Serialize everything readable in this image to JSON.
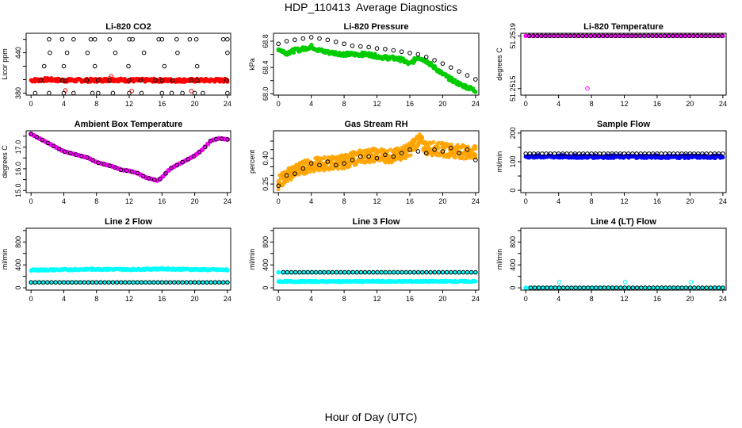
{
  "title": "HDP_110413  Average Diagnostics",
  "xlabel": "Hour of Day (UTC)",
  "chart_data": [
    {
      "type": "scatter",
      "title": "Li-820 CO2",
      "ylabel": "Licor ppm",
      "xlim": [
        -0.6,
        24.4
      ],
      "ylim": [
        377,
        469
      ],
      "xticks": [
        "0",
        "4",
        "8",
        "12",
        "16",
        "20",
        "24"
      ],
      "yticks": [
        "380",
        "400",
        "420",
        "440",
        "460"
      ],
      "ytick_labels": [
        "380",
        "",
        "",
        "440",
        ""
      ],
      "series": [
        {
          "color": "#ff0000",
          "style": "band",
          "x": [
            0,
            2,
            4,
            6,
            8,
            10,
            12,
            14,
            16,
            18,
            20,
            22,
            24
          ],
          "y": [
            399,
            400,
            399,
            399,
            399,
            400,
            399,
            399,
            399,
            399,
            399,
            399,
            399
          ],
          "spread": 2.5
        },
        {
          "color": "#ff0000",
          "style": "open",
          "x": [
            4.2,
            9.8,
            9.6,
            12.3,
            19.6
          ],
          "y": [
            384,
            405,
            402,
            383,
            383
          ]
        },
        {
          "color": "#000000",
          "style": "open",
          "x": [
            0.5,
            2.2,
            4,
            5.2,
            7.5,
            8.2,
            10,
            12,
            13.5,
            16,
            17.2,
            18.5,
            20,
            21,
            24
          ],
          "y": [
            380,
            380,
            380,
            380,
            380,
            380,
            380,
            380,
            380,
            380,
            380,
            380,
            380,
            380,
            380
          ]
        },
        {
          "color": "#000000",
          "style": "open",
          "x": [
            1.2,
            3.8,
            4.2,
            6.8,
            8.2,
            9.6,
            12,
            13.4,
            15.2,
            16,
            17.3,
            19.6,
            20.3,
            23.9
          ],
          "y": [
            399,
            399,
            399,
            399,
            399,
            399,
            399,
            399,
            399,
            399,
            399,
            399,
            399,
            399
          ]
        },
        {
          "color": "#000000",
          "style": "open",
          "x": [
            1.6,
            2.3,
            4,
            4.4,
            6.9,
            7.8,
            10.3,
            11.9,
            13.8,
            16.3,
            17.9,
            20.3,
            24
          ],
          "y": [
            420,
            440,
            420,
            440,
            440,
            420,
            440,
            420,
            440,
            420,
            440,
            420,
            440
          ]
        },
        {
          "color": "#000000",
          "style": "open",
          "x": [
            2.2,
            3.8,
            5.2,
            7.3,
            7.8,
            9.6,
            12,
            12.4,
            15.6,
            16,
            17.8,
            19.4,
            20.2,
            23.5,
            24
          ],
          "y": [
            460,
            460,
            460,
            460,
            460,
            460,
            460,
            460,
            460,
            460,
            460,
            460,
            460,
            460,
            460
          ]
        }
      ]
    },
    {
      "type": "scatter",
      "title": "Li-820 Pressure",
      "ylabel": "kPa",
      "xlim": [
        -0.6,
        24.4
      ],
      "ylim": [
        67.98,
        68.92
      ],
      "xticks": [
        "0",
        "4",
        "8",
        "12",
        "16",
        "20",
        "24"
      ],
      "yticks": [
        "68.0",
        "68.2",
        "68.4",
        "68.6",
        "68.8"
      ],
      "ytick_labels": [
        "68.0",
        "",
        "68.4",
        "",
        "68.8"
      ],
      "series": [
        {
          "color": "#00cc00",
          "style": "band",
          "x": [
            0,
            1,
            2,
            3,
            4,
            5,
            6,
            7,
            8,
            9,
            10,
            11,
            12,
            13,
            14,
            15,
            16,
            17,
            18,
            19,
            20,
            21,
            22,
            23,
            24
          ],
          "y": [
            68.68,
            68.62,
            68.66,
            68.68,
            68.72,
            68.66,
            68.63,
            68.62,
            68.6,
            68.6,
            68.6,
            68.6,
            68.57,
            68.55,
            68.54,
            68.52,
            68.45,
            68.56,
            68.5,
            68.4,
            68.3,
            68.22,
            68.15,
            68.1,
            68.05
          ],
          "spread": 0.03
        },
        {
          "color": "#000000",
          "style": "open",
          "x": [
            0,
            1,
            2,
            3,
            4,
            5,
            6,
            7,
            8,
            9,
            10,
            11,
            12,
            13,
            14,
            15,
            16,
            17,
            18,
            19,
            20,
            21,
            22,
            23,
            24
          ],
          "y": [
            68.76,
            68.8,
            68.82,
            68.84,
            68.86,
            68.84,
            68.82,
            68.79,
            68.76,
            68.73,
            68.72,
            68.71,
            68.69,
            68.68,
            68.66,
            68.64,
            68.62,
            68.6,
            68.56,
            68.51,
            68.46,
            68.4,
            68.34,
            68.28,
            68.22
          ]
        }
      ]
    },
    {
      "type": "scatter",
      "title": "Li-820 Temperature",
      "ylabel": "degrees C",
      "xlim": [
        -0.6,
        24.4
      ],
      "ylim": [
        51.25145,
        51.25192
      ],
      "xticks": [
        "0",
        "4",
        "8",
        "12",
        "16",
        "20",
        "24"
      ],
      "yticks": [
        "51.2515",
        "51.2517",
        "51.2519"
      ],
      "ytick_labels": [
        "51.2515",
        "51.2519"
      ],
      "ytick_values": [
        51.2515,
        51.2519
      ],
      "series": [
        {
          "color": "#ff00ff",
          "style": "row",
          "x": [
            0,
            24
          ],
          "y": [
            51.2519,
            51.2519
          ]
        },
        {
          "color": "#ff00ff",
          "style": "open",
          "x": [
            7.5
          ],
          "y": [
            51.2515
          ]
        },
        {
          "color": "#000000",
          "style": "row-open",
          "x": [
            0.4,
            23.9
          ],
          "y": [
            51.2519,
            51.2519
          ]
        }
      ]
    },
    {
      "type": "scatter",
      "title": "Ambient Box Temperature",
      "ylabel": "degrees C",
      "xlim": [
        -0.6,
        24.4
      ],
      "ylim": [
        14.9,
        17.75
      ],
      "xticks": [
        "0",
        "4",
        "8",
        "12",
        "16",
        "20",
        "24"
      ],
      "yticks": [
        "15.0",
        "15.5",
        "16.0",
        "16.5",
        "17.0",
        "17.5"
      ],
      "ytick_labels": [
        "15.0",
        "",
        "16.0",
        "",
        "17.0",
        ""
      ],
      "series": [
        {
          "color": "#ff00ff",
          "style": "curve",
          "x": [
            0,
            1,
            2,
            3,
            4,
            5,
            6,
            7,
            8,
            9,
            10,
            11,
            12,
            13,
            14,
            15,
            15.5,
            16,
            17,
            18,
            19,
            20,
            21,
            22,
            23,
            24
          ],
          "y": [
            17.6,
            17.4,
            17.2,
            17.0,
            16.8,
            16.7,
            16.6,
            16.5,
            16.3,
            16.2,
            16.1,
            15.95,
            15.9,
            15.8,
            15.6,
            15.5,
            15.45,
            15.6,
            16.0,
            16.2,
            16.4,
            16.6,
            16.9,
            17.3,
            17.4,
            17.35
          ]
        },
        {
          "color": "#000000",
          "style": "curve-open",
          "x": [
            0,
            1,
            2,
            3,
            4,
            5,
            6,
            7,
            8,
            9,
            10,
            11,
            12,
            13,
            14,
            15,
            15.5,
            16,
            17,
            18,
            19,
            20,
            21,
            22,
            23,
            24
          ],
          "y": [
            17.6,
            17.4,
            17.2,
            17.0,
            16.8,
            16.7,
            16.6,
            16.5,
            16.3,
            16.2,
            16.1,
            15.95,
            15.9,
            15.8,
            15.6,
            15.5,
            15.45,
            15.6,
            16.0,
            16.2,
            16.4,
            16.6,
            16.9,
            17.3,
            17.4,
            17.35
          ]
        }
      ]
    },
    {
      "type": "scatter",
      "title": "Gas Stream RH",
      "ylabel": "percent",
      "xlim": [
        -0.6,
        24.4
      ],
      "ylim": [
        0.2,
        0.56
      ],
      "xticks": [
        "0",
        "4",
        "8",
        "12",
        "16",
        "20",
        "24"
      ],
      "yticks": [
        "0.25",
        "0.30",
        "0.35",
        "0.40",
        "0.45",
        "0.50"
      ],
      "ytick_labels": [
        "0.25",
        "",
        "",
        "0.40",
        "",
        ""
      ],
      "series": [
        {
          "color": "#ffa500",
          "style": "noisy-band",
          "x": [
            0,
            2,
            4,
            6,
            8,
            10,
            12,
            14,
            16,
            17,
            18,
            20,
            22,
            24
          ],
          "y": [
            0.26,
            0.33,
            0.36,
            0.37,
            0.38,
            0.41,
            0.42,
            0.41,
            0.45,
            0.51,
            0.46,
            0.45,
            0.44,
            0.43
          ],
          "spread": 0.04
        },
        {
          "color": "#000000",
          "style": "open",
          "x": [
            0,
            1,
            2,
            3,
            4,
            5,
            6,
            7,
            8,
            9,
            10,
            11,
            12,
            13,
            14,
            15,
            16,
            17,
            18,
            19,
            20,
            21,
            22,
            23,
            24
          ],
          "y": [
            0.24,
            0.3,
            0.31,
            0.34,
            0.37,
            0.36,
            0.38,
            0.36,
            0.37,
            0.39,
            0.41,
            0.41,
            0.4,
            0.42,
            0.41,
            0.43,
            0.45,
            0.44,
            0.43,
            0.45,
            0.44,
            0.46,
            0.43,
            0.45,
            0.39
          ]
        }
      ]
    },
    {
      "type": "scatter",
      "title": "Sample Flow",
      "ylabel": "ml/min",
      "xlim": [
        -0.6,
        24.4
      ],
      "ylim": [
        -8,
        208
      ],
      "xticks": [
        "0",
        "4",
        "8",
        "12",
        "16",
        "20",
        "24"
      ],
      "yticks": [
        "0",
        "50",
        "100",
        "150",
        "200"
      ],
      "ytick_labels": [
        "0",
        "",
        "100",
        "",
        "200"
      ],
      "series": [
        {
          "color": "#0000ff",
          "style": "band",
          "x": [
            0,
            24
          ],
          "y": [
            118,
            117
          ],
          "spread": 5
        },
        {
          "color": "#000000",
          "style": "row-open",
          "x": [
            0,
            24
          ],
          "y": [
            128,
            128
          ]
        }
      ]
    },
    {
      "type": "scatter",
      "title": "Line 2 Flow",
      "ylabel": "ml/min",
      "xlim": [
        -0.6,
        24.4
      ],
      "ylim": [
        -40,
        1040
      ],
      "xticks": [
        "0",
        "4",
        "8",
        "12",
        "16",
        "20",
        "24"
      ],
      "yticks": [
        "0",
        "200",
        "400",
        "600",
        "800",
        "1000"
      ],
      "ytick_labels": [
        "0",
        "",
        "400",
        "",
        "800",
        ""
      ],
      "series": [
        {
          "color": "#00ffff",
          "style": "band",
          "x": [
            0,
            4,
            8,
            12,
            16,
            20,
            24
          ],
          "y": [
            310,
            315,
            325,
            320,
            330,
            320,
            312
          ],
          "spread": 14
        },
        {
          "color": "#00ffff",
          "style": "row",
          "x": [
            0,
            24
          ],
          "y": [
            95,
            95
          ]
        },
        {
          "color": "#000000",
          "style": "row-open",
          "x": [
            0,
            24
          ],
          "y": [
            95,
            95
          ]
        }
      ]
    },
    {
      "type": "scatter",
      "title": "Line 3 Flow",
      "ylabel": "ml/min",
      "xlim": [
        -0.6,
        24.4
      ],
      "ylim": [
        -40,
        1040
      ],
      "xticks": [
        "0",
        "4",
        "8",
        "12",
        "16",
        "20",
        "24"
      ],
      "yticks": [
        "0",
        "200",
        "400",
        "600",
        "800",
        "1000"
      ],
      "ytick_labels": [
        "0",
        "",
        "400",
        "",
        "800",
        ""
      ],
      "series": [
        {
          "color": "#00ffff",
          "style": "band",
          "x": [
            0,
            24
          ],
          "y": [
            110,
            112
          ],
          "spread": 12
        },
        {
          "color": "#00ffff",
          "style": "row",
          "x": [
            0,
            24
          ],
          "y": [
            270,
            270
          ]
        },
        {
          "color": "#000000",
          "style": "row-open",
          "x": [
            0.6,
            24
          ],
          "y": [
            270,
            270
          ]
        }
      ]
    },
    {
      "type": "scatter",
      "title": "Line 4 (LT) Flow",
      "ylabel": "ml/min",
      "xlim": [
        -0.6,
        24.4
      ],
      "ylim": [
        -40,
        1040
      ],
      "xticks": [
        "0",
        "4",
        "8",
        "12",
        "16",
        "20",
        "24"
      ],
      "yticks": [
        "0",
        "200",
        "400",
        "600",
        "800",
        "1000"
      ],
      "ytick_labels": [
        "0",
        "",
        "400",
        "",
        "800",
        ""
      ],
      "series": [
        {
          "color": "#00ffff",
          "style": "row",
          "x": [
            0,
            24
          ],
          "y": [
            0,
            0
          ]
        },
        {
          "color": "#00ffff",
          "style": "open",
          "x": [
            4.1,
            12.1,
            20.1
          ],
          "y": [
            100,
            100,
            100
          ]
        },
        {
          "color": "#000000",
          "style": "row-open",
          "x": [
            0.6,
            24
          ],
          "y": [
            0,
            0
          ]
        }
      ]
    }
  ]
}
